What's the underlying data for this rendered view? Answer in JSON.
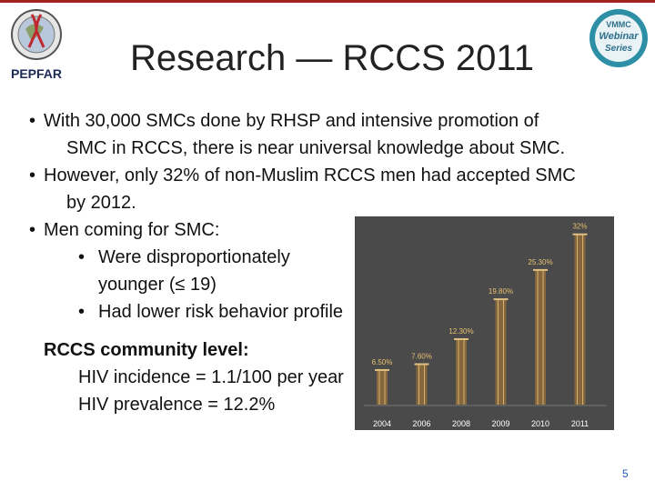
{
  "header": {
    "title": "Research — RCCS 2011",
    "left_logo_text": "PEPFAR",
    "right_logo_text": [
      "VMMC",
      "Webinar",
      "Series"
    ]
  },
  "bullets": {
    "b1_l1": "With 30,000 SMCs done by RHSP and intensive promotion of",
    "b1_l2": "SMC in RCCS, there is near universal knowledge about SMC.",
    "b2_l1": "However, only 32% of  non-Muslim RCCS men had accepted SMC",
    "b2_l2": "by 2012.",
    "b3": "Men coming for SMC:",
    "b3a_l1": "Were disproportionately",
    "b3a_l2": "younger (≤ 19)",
    "b3b": "Had lower risk behavior profile",
    "community_heading": "RCCS community level:",
    "incidence": "HIV incidence = 1.1/100 per year",
    "prevalence": "HIV prevalence = 12.2%"
  },
  "chart_data": {
    "type": "bar",
    "categories": [
      "2004",
      "2006",
      "2008",
      "2009",
      "2010",
      "2011"
    ],
    "values": [
      6.5,
      7.6,
      12.3,
      19.8,
      25.3,
      32
    ],
    "data_labels": [
      "6.50%",
      "7.60%",
      "12.30%",
      "19.80%",
      "25.30%",
      "32%"
    ],
    "ylim": [
      0,
      34
    ],
    "grid": false
  },
  "footer": {
    "page_number": "5"
  },
  "colors": {
    "accent": "#a32222",
    "chart_bg": "#4a4a4a",
    "bar": "#8b6a3c",
    "label": "#e8c070"
  }
}
